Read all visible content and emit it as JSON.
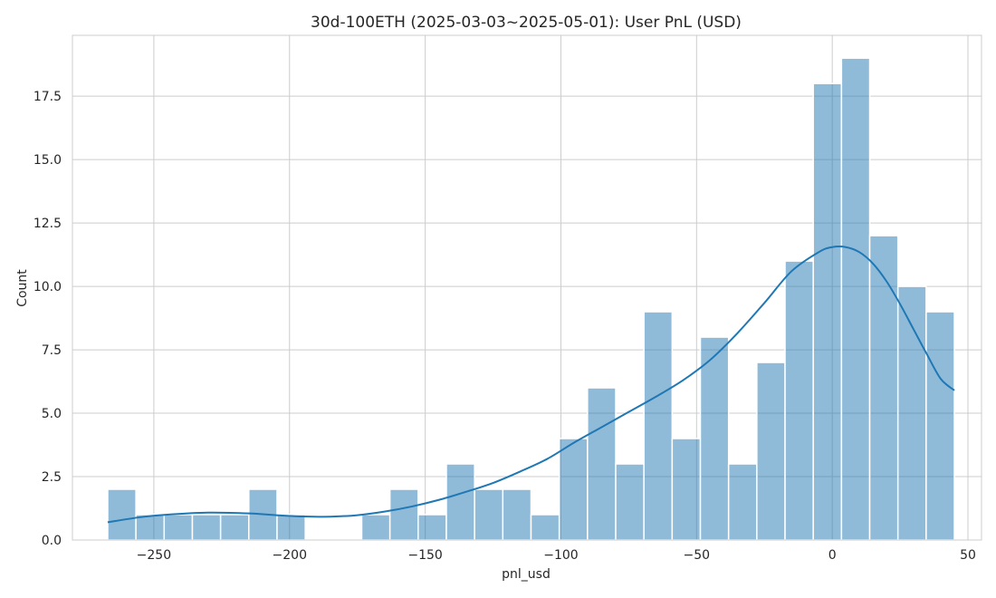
{
  "chart_data": {
    "type": "histogram",
    "title": "30d-100ETH (2025-03-03~2025-05-01): User PnL (USD)",
    "xlabel": "pnl_usd",
    "ylabel": "Count",
    "xlim": [
      -280,
      55
    ],
    "ylim": [
      0,
      19.9
    ],
    "xticks": [
      -250,
      -200,
      -150,
      -100,
      -50,
      0,
      50
    ],
    "xtick_labels": [
      "−250",
      "−200",
      "−150",
      "−100",
      "−50",
      "0",
      "50"
    ],
    "yticks": [
      0,
      2.5,
      5,
      7.5,
      10,
      12.5,
      15,
      17.5
    ],
    "ytick_labels": [
      "0.0",
      "2.5",
      "5.0",
      "7.5",
      "10.0",
      "12.5",
      "15.0",
      "17.5"
    ],
    "grid": true,
    "bin_edges": [
      -267.0,
      -256.6,
      -246.2,
      -235.8,
      -225.4,
      -215.0,
      -204.6,
      -194.2,
      -183.8,
      -173.4,
      -163.0,
      -152.6,
      -142.2,
      -131.8,
      -121.4,
      -111.0,
      -100.6,
      -90.2,
      -79.8,
      -69.4,
      -59.0,
      -48.6,
      -38.2,
      -27.8,
      -17.4,
      -7.0,
      3.4,
      13.8,
      24.2,
      34.6,
      45.0
    ],
    "counts": [
      2,
      1,
      1,
      1,
      1,
      2,
      1,
      0,
      0,
      1,
      2,
      1,
      3,
      2,
      2,
      1,
      4,
      6,
      3,
      9,
      4,
      8,
      3,
      7,
      11,
      18,
      19,
      12,
      10,
      9
    ],
    "kde": {
      "x": [
        -267,
        -255,
        -245,
        -230,
        -215,
        -205,
        -195,
        -185,
        -175,
        -165,
        -155,
        -145,
        -135,
        -125,
        -115,
        -105,
        -95,
        -85,
        -75,
        -65,
        -55,
        -45,
        -35,
        -25,
        -15,
        -5,
        0,
        5,
        10,
        15,
        20,
        25,
        30,
        35,
        40,
        45
      ],
      "y": [
        0.7,
        0.9,
        1.0,
        1.08,
        1.05,
        0.98,
        0.93,
        0.92,
        0.98,
        1.12,
        1.32,
        1.58,
        1.9,
        2.25,
        2.7,
        3.2,
        3.85,
        4.45,
        5.05,
        5.65,
        6.3,
        7.1,
        8.15,
        9.35,
        10.6,
        11.35,
        11.55,
        11.55,
        11.35,
        10.9,
        10.2,
        9.3,
        8.3,
        7.3,
        6.35,
        5.9
      ]
    },
    "color": "#1f77b4"
  }
}
